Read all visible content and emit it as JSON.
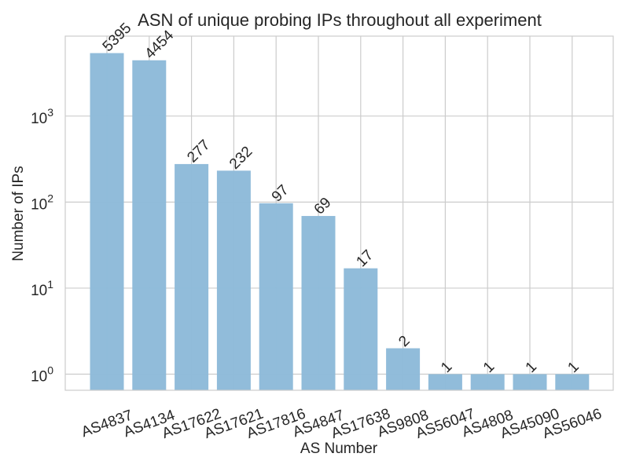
{
  "chart_data": {
    "type": "bar",
    "title": "ASN of unique probing IPs throughout all experiment",
    "xlabel": "AS Number",
    "ylabel": "Number of IPs",
    "yscale": "log",
    "ylim": [
      0.65,
      8500
    ],
    "y_ticks": [
      {
        "value": 1,
        "base": "10",
        "exp": "0"
      },
      {
        "value": 10,
        "base": "10",
        "exp": "1"
      },
      {
        "value": 100,
        "base": "10",
        "exp": "2"
      },
      {
        "value": 1000,
        "base": "10",
        "exp": "3"
      }
    ],
    "grid": true,
    "bar_color": "#8fbbd9",
    "categories": [
      "AS4837",
      "AS4134",
      "AS17622",
      "AS17621",
      "AS17816",
      "AS4847",
      "AS17638",
      "AS9808",
      "AS56047",
      "AS4808",
      "AS45090",
      "AS56046"
    ],
    "values": [
      5395,
      4454,
      277,
      232,
      97,
      69,
      17,
      2,
      1,
      1,
      1,
      1
    ],
    "data_labels": [
      "5395",
      "4454",
      "277",
      "232",
      "97",
      "69",
      "17",
      "2",
      "1",
      "1",
      "1",
      "1"
    ]
  }
}
